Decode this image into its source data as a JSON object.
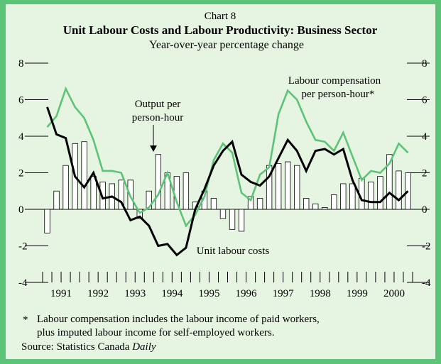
{
  "chart_data": {
    "type": "bar",
    "chart_label": "Chart 8",
    "title": "Unit Labour Costs and Labour Productivity: Business Sector",
    "subtitle": "Year-over-year percentage change",
    "ylim": [
      -4,
      8
    ],
    "yticks": [
      "8",
      "6",
      "4",
      "2",
      "0",
      "-2",
      "-4"
    ],
    "years": [
      "1991",
      "1992",
      "1993",
      "1994",
      "1995",
      "1996",
      "1997",
      "1998",
      "1999",
      "2000"
    ],
    "x_start": 1990.75,
    "x_end": 2000.75,
    "x_note": "quarterly observations, 1990Q4 to 2000Q4",
    "annotations": {
      "output": [
        "Output per",
        "person-hour"
      ],
      "compensation": [
        "Labour compensation",
        "per person-hour*"
      ],
      "ulc": "Unit labour costs"
    },
    "series": [
      {
        "name": "Output per person-hour",
        "kind": "bar",
        "color": "#ffffff",
        "values": [
          -1.3,
          1.0,
          2.4,
          3.6,
          3.7,
          1.8,
          1.5,
          1.4,
          1.6,
          1.6,
          -0.5,
          1.0,
          3.0,
          2.0,
          1.8,
          2.0,
          0.4,
          1.0,
          0.6,
          -0.5,
          -1.1,
          -1.2,
          0.7,
          0.6,
          2.4,
          2.5,
          2.6,
          2.4,
          0.6,
          0.3,
          0.1,
          0.8,
          1.4,
          1.4,
          1.7,
          1.5,
          1.8,
          3.0,
          2.1,
          2.0
        ]
      },
      {
        "name": "Labour compensation per person-hour*",
        "kind": "line",
        "color": "#5cc476",
        "x_start": 1990.75,
        "values": [
          4.5,
          5.1,
          6.6,
          5.6,
          5.0,
          3.8,
          2.1,
          2.1,
          2.0,
          0.7,
          -0.2,
          0.1,
          0.8,
          2.0,
          0.4,
          -0.9,
          -0.3,
          0.7,
          2.7,
          3.6,
          3.1,
          0.9,
          0.5,
          1.9,
          2.3,
          5.2,
          6.5,
          6.0,
          4.8,
          3.8,
          3.7,
          3.2,
          4.2,
          2.9,
          1.6,
          2.1,
          2.0,
          2.5,
          3.6,
          3.1
        ]
      },
      {
        "name": "Unit labour costs",
        "kind": "line",
        "color": "#000000",
        "x_start": 1990.75,
        "values": [
          5.6,
          4.1,
          3.9,
          1.8,
          1.2,
          2.0,
          0.6,
          0.7,
          0.4,
          -0.6,
          -0.4,
          -0.9,
          -2.0,
          -1.9,
          -2.5,
          -2.1,
          0.0,
          1.1,
          2.4,
          3.2,
          3.7,
          1.9,
          1.5,
          1.3,
          1.8,
          2.8,
          3.8,
          3.2,
          2.1,
          3.2,
          3.3,
          3.0,
          3.3,
          1.6,
          0.5,
          0.4,
          0.4,
          0.9,
          0.5,
          1.0
        ]
      }
    ],
    "footnote_marker": "*",
    "footnote_lines": [
      "Labour compensation includes the labour income of paid workers,",
      "plus imputed labour income for self-employed workers."
    ],
    "source_label": "Source: Statistics Canada",
    "source_name": "Daily"
  }
}
